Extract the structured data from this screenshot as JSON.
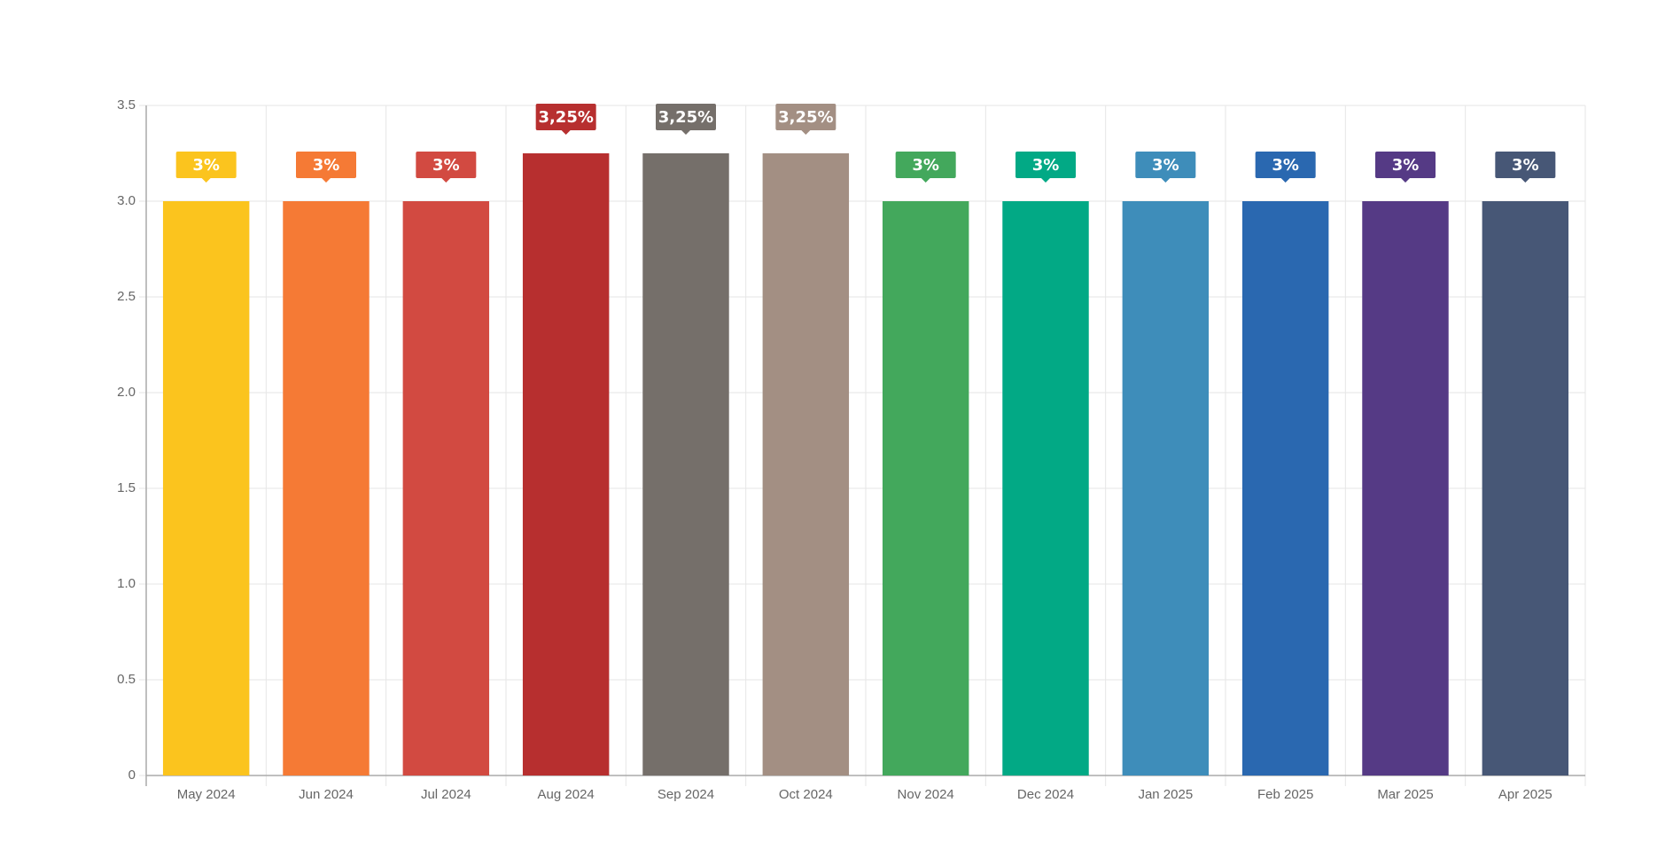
{
  "chart_data": {
    "type": "bar",
    "categories": [
      "May 2024",
      "Jun 2024",
      "Jul 2024",
      "Aug 2024",
      "Sep 2024",
      "Oct 2024",
      "Nov 2024",
      "Dec 2024",
      "Jan 2025",
      "Feb 2025",
      "Mar 2025",
      "Apr 2025"
    ],
    "values": [
      3,
      3,
      3,
      3.25,
      3.25,
      3.25,
      3,
      3,
      3,
      3,
      3,
      3
    ],
    "value_labels": [
      "3%",
      "3%",
      "3%",
      "3,25%",
      "3,25%",
      "3,25%",
      "3%",
      "3%",
      "3%",
      "3%",
      "3%",
      "3%"
    ],
    "colors": [
      "#fbc41e",
      "#f57a35",
      "#d24a41",
      "#b72f2f",
      "#756f6a",
      "#a38f83",
      "#43a85c",
      "#02a985",
      "#3e8dba",
      "#2a68b0",
      "#553a85",
      "#475776"
    ],
    "ylim": [
      0,
      3.5
    ],
    "yticks": [
      0,
      0.5,
      {
        "value": 1,
        "label": "1.0"
      },
      1.5,
      {
        "value": 2,
        "label": "2.0"
      },
      2.5,
      {
        "value": 3,
        "label": "3.0"
      },
      3.5
    ],
    "grid": true
  }
}
